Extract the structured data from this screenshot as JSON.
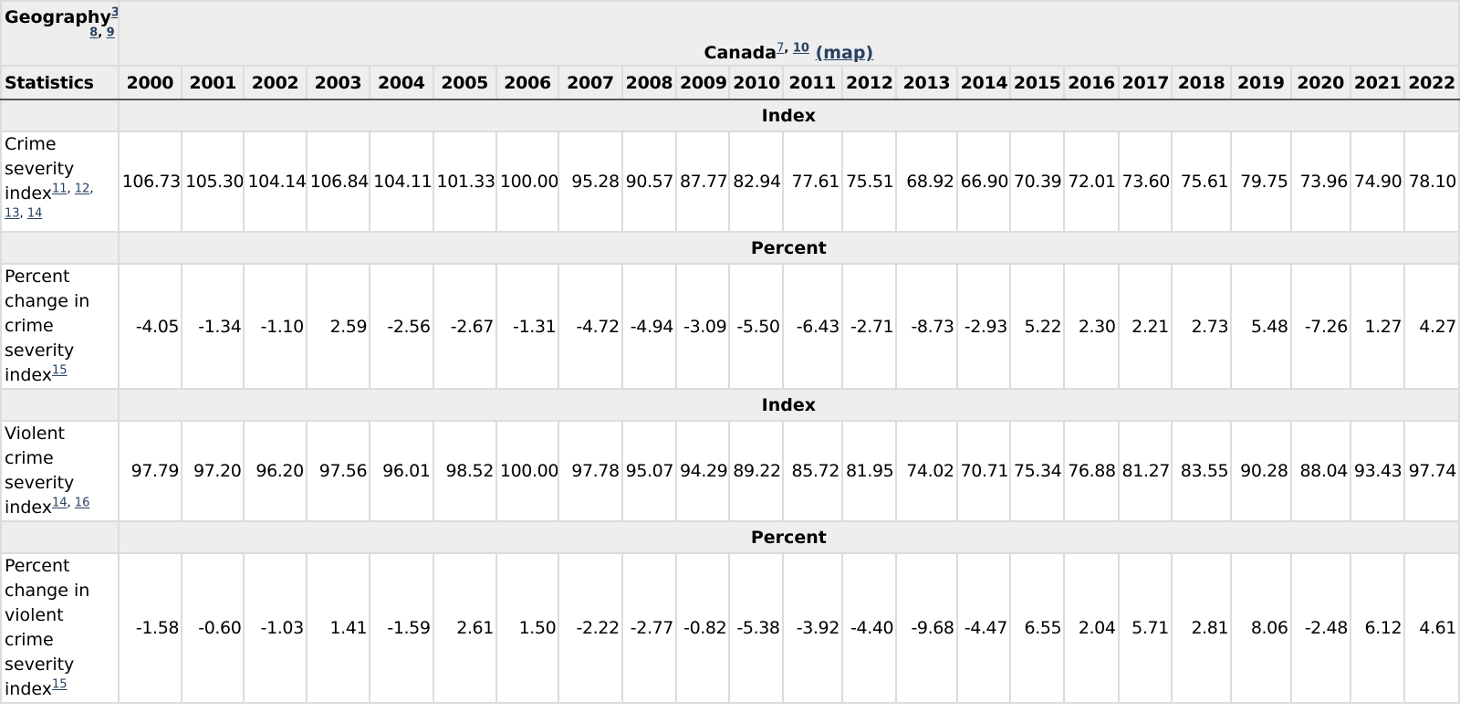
{
  "header": {
    "geography_label": "Geography",
    "geography_footnotes": [
      "3",
      "8",
      "9"
    ],
    "canada_label": "Canada",
    "canada_footnotes": [
      "7",
      "10"
    ],
    "map_link": "(map)",
    "statistics_label": "Statistics",
    "years": [
      "2000",
      "2001",
      "2002",
      "2003",
      "2004",
      "2005",
      "2006",
      "2007",
      "2008",
      "2009",
      "2010",
      "2011",
      "2012",
      "2013",
      "2014",
      "2015",
      "2016",
      "2017",
      "2018",
      "2019",
      "2020",
      "2021",
      "2022"
    ]
  },
  "sections": [
    {
      "unit": "Index",
      "label": "Crime severity index",
      "footnotes": [
        "11",
        "12",
        "13",
        "14"
      ],
      "values": [
        "106.73",
        "105.30",
        "104.14",
        "106.84",
        "104.11",
        "101.33",
        "100.00",
        "95.28",
        "90.57",
        "87.77",
        "82.94",
        "77.61",
        "75.51",
        "68.92",
        "66.90",
        "70.39",
        "72.01",
        "73.60",
        "75.61",
        "79.75",
        "73.96",
        "74.90",
        "78.10"
      ]
    },
    {
      "unit": "Percent",
      "label": "Percent change in crime severity index",
      "footnotes": [
        "15"
      ],
      "values": [
        "-4.05",
        "-1.34",
        "-1.10",
        "2.59",
        "-2.56",
        "-2.67",
        "-1.31",
        "-4.72",
        "-4.94",
        "-3.09",
        "-5.50",
        "-6.43",
        "-2.71",
        "-8.73",
        "-2.93",
        "5.22",
        "2.30",
        "2.21",
        "2.73",
        "5.48",
        "-7.26",
        "1.27",
        "4.27"
      ]
    },
    {
      "unit": "Index",
      "label": "Violent crime severity index",
      "footnotes": [
        "14",
        "16"
      ],
      "values": [
        "97.79",
        "97.20",
        "96.20",
        "97.56",
        "96.01",
        "98.52",
        "100.00",
        "97.78",
        "95.07",
        "94.29",
        "89.22",
        "85.72",
        "81.95",
        "74.02",
        "70.71",
        "75.34",
        "76.88",
        "81.27",
        "83.55",
        "90.28",
        "88.04",
        "93.43",
        "97.74"
      ]
    },
    {
      "unit": "Percent",
      "label": "Percent change in violent crime severity index",
      "footnotes": [
        "15"
      ],
      "values": [
        "-1.58",
        "-0.60",
        "-1.03",
        "1.41",
        "-1.59",
        "2.61",
        "1.50",
        "-2.22",
        "-2.77",
        "-0.82",
        "-5.38",
        "-3.92",
        "-4.40",
        "-9.68",
        "-4.47",
        "6.55",
        "2.04",
        "5.71",
        "2.81",
        "8.06",
        "-2.48",
        "6.12",
        "4.61"
      ]
    }
  ],
  "colors": {
    "header_bg": "#eeeeee",
    "border": "#dcdcdc",
    "link": "#284162"
  }
}
